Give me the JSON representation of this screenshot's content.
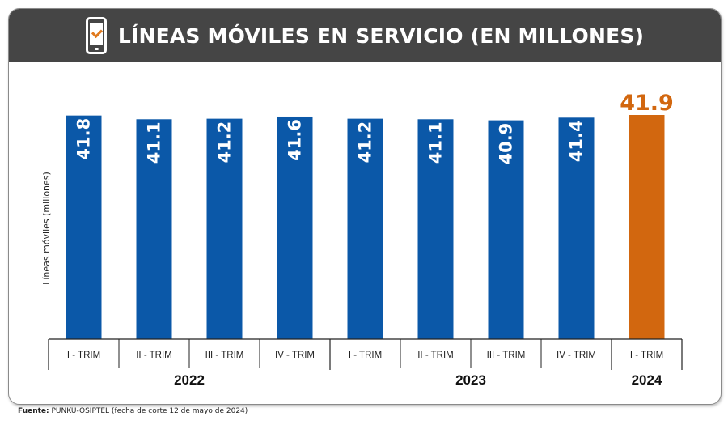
{
  "header": {
    "title": "LÍNEAS MÓVILES EN SERVICIO (EN MILLONES)",
    "icon": "smartphone-check-icon"
  },
  "chart_data": {
    "type": "bar",
    "ylabel": "Líneas móviles (millones)",
    "categories": [
      "I - TRIM",
      "II - TRIM",
      "III - TRIM",
      "IV - TRIM",
      "I - TRIM",
      "II - TRIM",
      "III - TRIM",
      "IV - TRIM",
      "I - TRIM"
    ],
    "values": [
      41.8,
      41.1,
      41.2,
      41.6,
      41.2,
      41.1,
      40.9,
      41.4,
      41.9
    ],
    "value_labels": [
      "41.8",
      "41.1",
      "41.2",
      "41.6",
      "41.2",
      "41.1",
      "40.9",
      "41.4",
      "41.9"
    ],
    "years": [
      {
        "label": "2022",
        "count": 4
      },
      {
        "label": "2023",
        "count": 4
      },
      {
        "label": "2024",
        "count": 1
      }
    ],
    "highlight_index": 8,
    "colors": {
      "bar": "#0b58a8",
      "highlight": "#d2670f",
      "label": "#ffffff"
    },
    "ylim": [
      0,
      41.9
    ]
  },
  "footer": {
    "source_label": "Fuente:",
    "source_text": "PUNKU-OSIPTEL (fecha de corte 12 de mayo de 2024)"
  }
}
